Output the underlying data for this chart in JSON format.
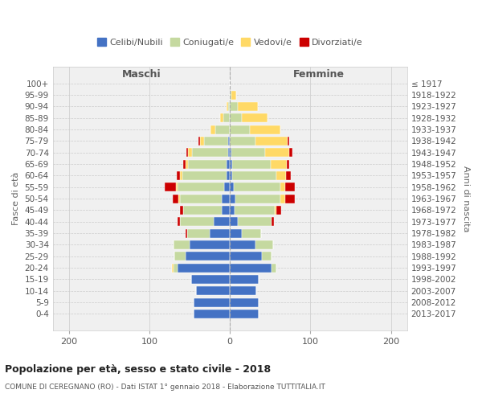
{
  "age_groups": [
    "100+",
    "95-99",
    "90-94",
    "85-89",
    "80-84",
    "75-79",
    "70-74",
    "65-69",
    "60-64",
    "55-59",
    "50-54",
    "45-49",
    "40-44",
    "35-39",
    "30-34",
    "25-29",
    "20-24",
    "15-19",
    "10-14",
    "5-9",
    "0-4"
  ],
  "birth_years": [
    "≤ 1917",
    "1918-1922",
    "1923-1927",
    "1928-1932",
    "1933-1937",
    "1938-1942",
    "1943-1947",
    "1948-1952",
    "1953-1957",
    "1958-1962",
    "1963-1967",
    "1968-1972",
    "1973-1977",
    "1978-1982",
    "1983-1987",
    "1988-1992",
    "1993-1997",
    "1998-2002",
    "2003-2007",
    "2008-2012",
    "2013-2017"
  ],
  "maschi": {
    "celibi": [
      0,
      0,
      0,
      0,
      0,
      2,
      2,
      4,
      4,
      7,
      10,
      10,
      20,
      25,
      50,
      55,
      65,
      48,
      42,
      45,
      45
    ],
    "coniugati": [
      0,
      0,
      2,
      8,
      18,
      30,
      45,
      48,
      55,
      58,
      52,
      48,
      42,
      28,
      20,
      14,
      5,
      0,
      0,
      0,
      0
    ],
    "vedovi": [
      0,
      0,
      2,
      4,
      6,
      5,
      5,
      3,
      3,
      2,
      2,
      0,
      0,
      0,
      0,
      0,
      2,
      0,
      0,
      0,
      0
    ],
    "divorziati": [
      0,
      0,
      0,
      0,
      0,
      2,
      2,
      3,
      4,
      14,
      7,
      4,
      3,
      2,
      0,
      0,
      0,
      0,
      0,
      0,
      0
    ]
  },
  "femmine": {
    "nubili": [
      0,
      0,
      0,
      0,
      0,
      0,
      2,
      3,
      3,
      5,
      7,
      6,
      10,
      15,
      32,
      40,
      52,
      36,
      33,
      36,
      36
    ],
    "coniugate": [
      0,
      2,
      10,
      15,
      25,
      32,
      42,
      48,
      55,
      58,
      56,
      50,
      42,
      24,
      22,
      12,
      6,
      0,
      0,
      0,
      0
    ],
    "vedove": [
      0,
      6,
      25,
      32,
      38,
      40,
      30,
      20,
      12,
      6,
      6,
      2,
      0,
      0,
      0,
      0,
      0,
      0,
      0,
      0,
      0
    ],
    "divorziate": [
      0,
      0,
      0,
      0,
      0,
      2,
      4,
      3,
      6,
      12,
      12,
      6,
      3,
      0,
      0,
      0,
      0,
      0,
      0,
      0,
      0
    ]
  },
  "colors": {
    "celibi": "#4472c4",
    "coniugati": "#c5d9a0",
    "vedovi": "#ffd966",
    "divorziati": "#cc0000"
  },
  "xlim": [
    -220,
    220
  ],
  "xticks": [
    -200,
    -100,
    0,
    100,
    200
  ],
  "xticklabels": [
    "200",
    "100",
    "0",
    "100",
    "200"
  ],
  "title": "Popolazione per età, sesso e stato civile - 2018",
  "subtitle": "COMUNE DI CEREGNANO (RO) - Dati ISTAT 1° gennaio 2018 - Elaborazione TUTTITALIA.IT",
  "ylabel_left": "Fasce di età",
  "ylabel_right": "Anni di nascita",
  "label_maschi": "Maschi",
  "label_femmine": "Femmine",
  "legend_labels": [
    "Celibi/Nubili",
    "Coniugati/e",
    "Vedovi/e",
    "Divorziati/e"
  ],
  "bg_color": "#f0f0f0",
  "fig_width": 6.0,
  "fig_height": 5.0,
  "dpi": 100
}
